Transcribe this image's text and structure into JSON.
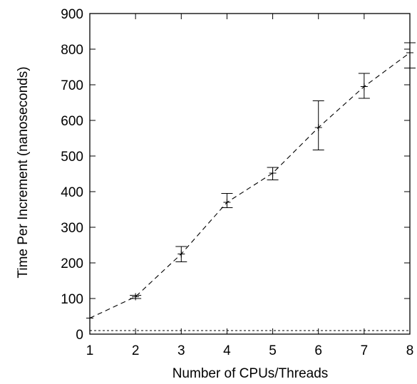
{
  "chart_data": {
    "type": "line",
    "xlabel": "Number of CPUs/Threads",
    "ylabel": "Time Per Increment (nanoseconds)",
    "xlim": [
      1,
      8
    ],
    "ylim": [
      0,
      900
    ],
    "xticks": [
      1,
      2,
      3,
      4,
      5,
      6,
      7,
      8
    ],
    "yticks": [
      0,
      100,
      200,
      300,
      400,
      500,
      600,
      700,
      800,
      900
    ],
    "grid": false,
    "legend": "none",
    "series": [
      {
        "x": [
          1,
          2,
          3,
          4,
          5,
          6,
          7,
          8
        ],
        "y": [
          45,
          105,
          225,
          370,
          452,
          580,
          695,
          790
        ],
        "err_low": [
          null,
          100,
          203,
          355,
          433,
          517,
          662,
          747
        ],
        "err_high": [
          null,
          109,
          246,
          395,
          468,
          655,
          732,
          818
        ],
        "line_style": "dashed",
        "marker": "plus",
        "error_bars": true,
        "color": "#000000"
      },
      {
        "x": [
          1,
          8
        ],
        "y": [
          10,
          10
        ],
        "line_style": "dotted",
        "color": "#000000"
      }
    ]
  }
}
